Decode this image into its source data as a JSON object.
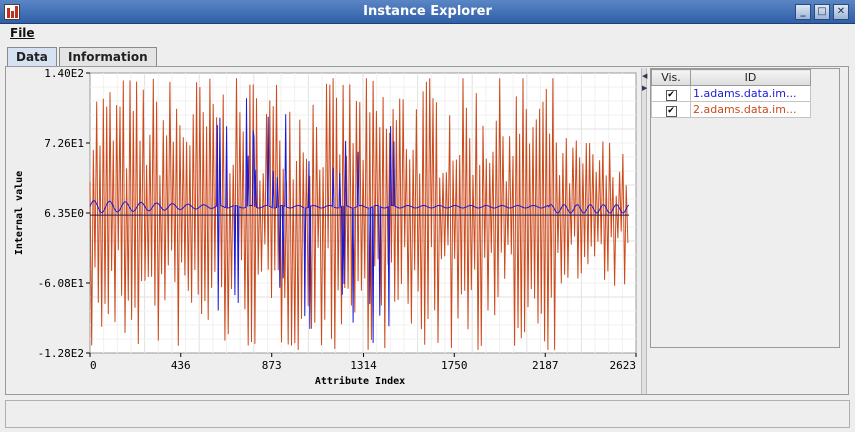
{
  "window": {
    "title": "Instance Explorer",
    "minimize": "_",
    "maximize": "□",
    "close": "✕"
  },
  "menu": {
    "file": "File"
  },
  "tabs": [
    {
      "label": "Data",
      "active": true
    },
    {
      "label": "Information",
      "active": false
    }
  ],
  "table": {
    "headers": {
      "vis": "Vis.",
      "id": "ID"
    },
    "rows": [
      {
        "visible": true,
        "id": "1.adams.data.im...",
        "color": "#1a1ad6"
      },
      {
        "visible": true,
        "id": "2.adams.data.im...",
        "color": "#cc4a1c"
      }
    ]
  },
  "chart_data": {
    "type": "line",
    "xlabel": "Attribute Index",
    "ylabel": "Internal value",
    "xticks": [
      "0",
      "436",
      "873",
      "1314",
      "1750",
      "2187",
      "2623"
    ],
    "yticks": [
      "1.40E2",
      "7.26E1",
      "6.35E0",
      "-6.08E1",
      "-1.28E2"
    ],
    "xlim": [
      0,
      2623
    ],
    "ylim": [
      -128,
      140
    ],
    "grid": true,
    "series": [
      {
        "name": "1.adams.data.im...",
        "color": "#1a1ad6"
      },
      {
        "name": "2.adams.data.im...",
        "color": "#cc4a1c"
      }
    ]
  }
}
